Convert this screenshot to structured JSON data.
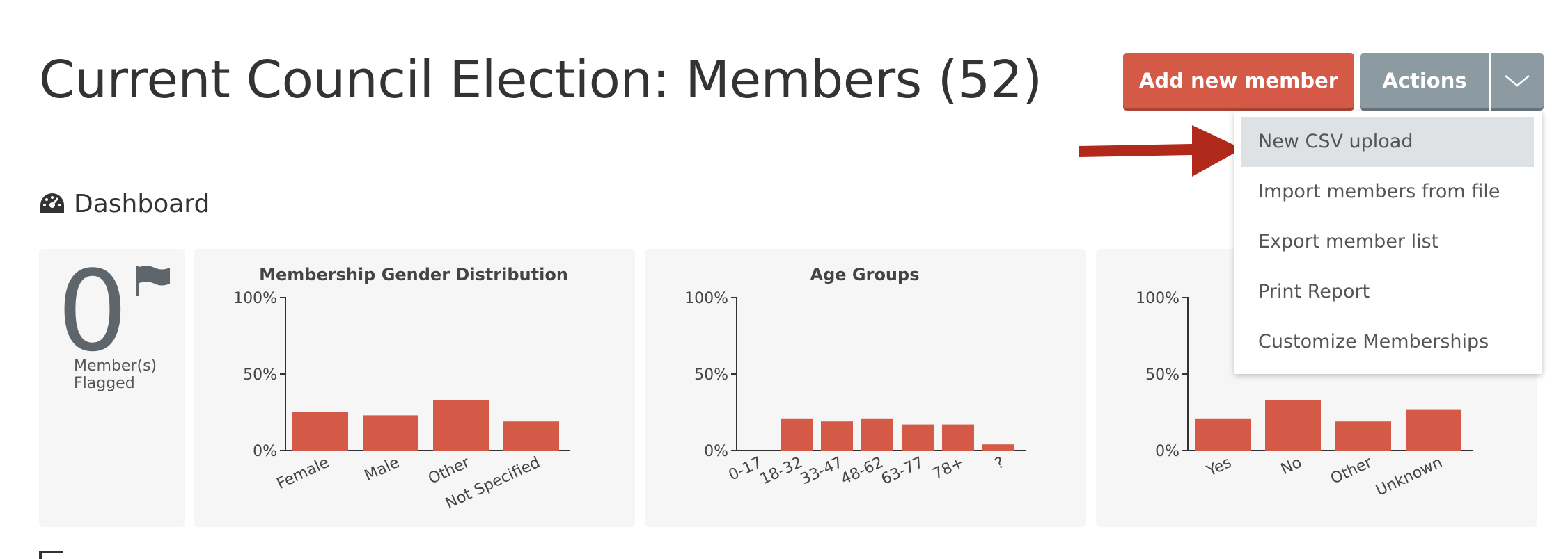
{
  "page": {
    "title": "Current Council Election: Members (52)"
  },
  "toolbar": {
    "add_label": "Add new member",
    "actions_label": "Actions"
  },
  "dropdown": {
    "items": [
      "New CSV upload",
      "Import members from file",
      "Export member list",
      "Print Report",
      "Customize Memberships"
    ],
    "active_index": 0
  },
  "annotation": {
    "arrow_color": "#b0291b"
  },
  "dashboard": {
    "heading": "Dashboard",
    "flagged": {
      "count": "0",
      "label": "Member(s) Flagged"
    }
  },
  "colors": {
    "accent": "#d45a47",
    "secondary": "#8c9aa2",
    "card_bg": "#f6f6f6"
  },
  "chart_data": [
    {
      "type": "bar",
      "title": "Membership Gender Distribution",
      "categories": [
        "Female",
        "Male",
        "Other",
        "Not Specified"
      ],
      "values": [
        25,
        23,
        33,
        19
      ],
      "yticks": [
        "100%",
        "50%",
        "0%"
      ],
      "ylim": [
        0,
        100
      ]
    },
    {
      "type": "bar",
      "title": "Age Groups",
      "categories": [
        "0-17",
        "18-32",
        "33-47",
        "48-62",
        "63-77",
        "78+",
        "?"
      ],
      "values": [
        0,
        21,
        19,
        21,
        17,
        17,
        4
      ],
      "yticks": [
        "100%",
        "50%",
        "0%"
      ],
      "ylim": [
        0,
        100
      ]
    },
    {
      "type": "bar",
      "title": "",
      "categories": [
        "Yes",
        "No",
        "Other",
        "Unknown"
      ],
      "values": [
        21,
        33,
        19,
        27
      ],
      "yticks": [
        "100%",
        "50%",
        "0%"
      ],
      "ylim": [
        0,
        100
      ]
    }
  ]
}
